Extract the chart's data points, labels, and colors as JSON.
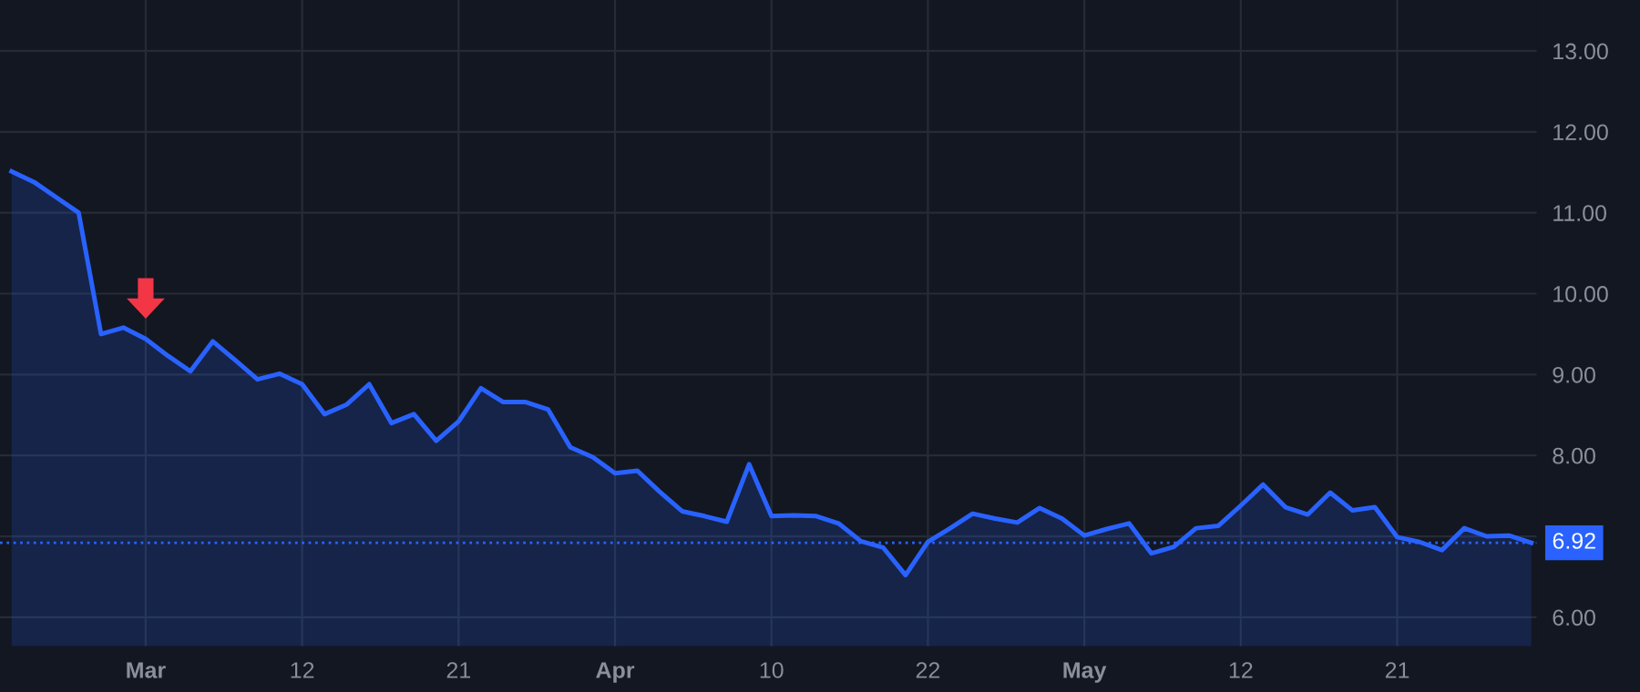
{
  "chart_data": {
    "type": "area",
    "categories": [
      null,
      null,
      null,
      null,
      null,
      null,
      "Mar",
      null,
      null,
      null,
      null,
      null,
      null,
      "12",
      null,
      null,
      null,
      null,
      null,
      null,
      "21",
      null,
      null,
      null,
      null,
      null,
      null,
      "Apr",
      null,
      null,
      null,
      null,
      null,
      null,
      "10",
      null,
      null,
      null,
      null,
      null,
      null,
      "22",
      null,
      null,
      null,
      null,
      null,
      null,
      "May",
      null,
      null,
      null,
      null,
      null,
      null,
      "12",
      null,
      null,
      null,
      null,
      null,
      null,
      "21",
      null,
      null,
      null,
      null,
      null,
      null
    ],
    "series": [
      {
        "color": "#2962ff",
        "values": [
          11.51,
          11.38,
          11.19,
          11.0,
          9.5,
          9.58,
          9.44,
          9.23,
          9.04,
          9.41,
          9.18,
          8.94,
          9.01,
          8.88,
          8.51,
          8.63,
          8.88,
          8.4,
          8.51,
          8.18,
          8.42,
          8.83,
          8.66,
          8.66,
          8.57,
          8.1,
          7.98,
          7.78,
          7.81,
          7.55,
          7.31,
          7.25,
          7.18,
          7.89,
          7.25,
          7.26,
          7.25,
          7.16,
          6.94,
          6.86,
          6.52,
          6.93,
          7.1,
          7.28,
          7.22,
          7.17,
          7.35,
          7.22,
          7.01,
          7.09,
          7.16,
          6.79,
          6.87,
          7.1,
          7.13,
          7.38,
          7.64,
          7.36,
          7.27,
          7.54,
          7.32,
          7.36,
          6.99,
          6.93,
          6.83,
          7.1,
          7.0,
          7.01,
          6.92
        ]
      }
    ],
    "ylim": [
      5.64,
      13.63
    ],
    "yticks": [
      {
        "value": 6,
        "label": "6.00"
      },
      {
        "value": 7,
        "label": null
      },
      {
        "value": 8,
        "label": "8.00"
      },
      {
        "value": 9,
        "label": "9.00"
      },
      {
        "value": 10,
        "label": "10.00"
      },
      {
        "value": 11,
        "label": "11.00"
      },
      {
        "value": 12,
        "label": "12.00"
      },
      {
        "value": 13,
        "label": "13.00"
      }
    ],
    "ref_lines": [
      {
        "axis": "y",
        "value": 6.92,
        "label": "6.92",
        "color": "#2962ff",
        "line_style": "dotted"
      }
    ],
    "grid": true
  }
}
